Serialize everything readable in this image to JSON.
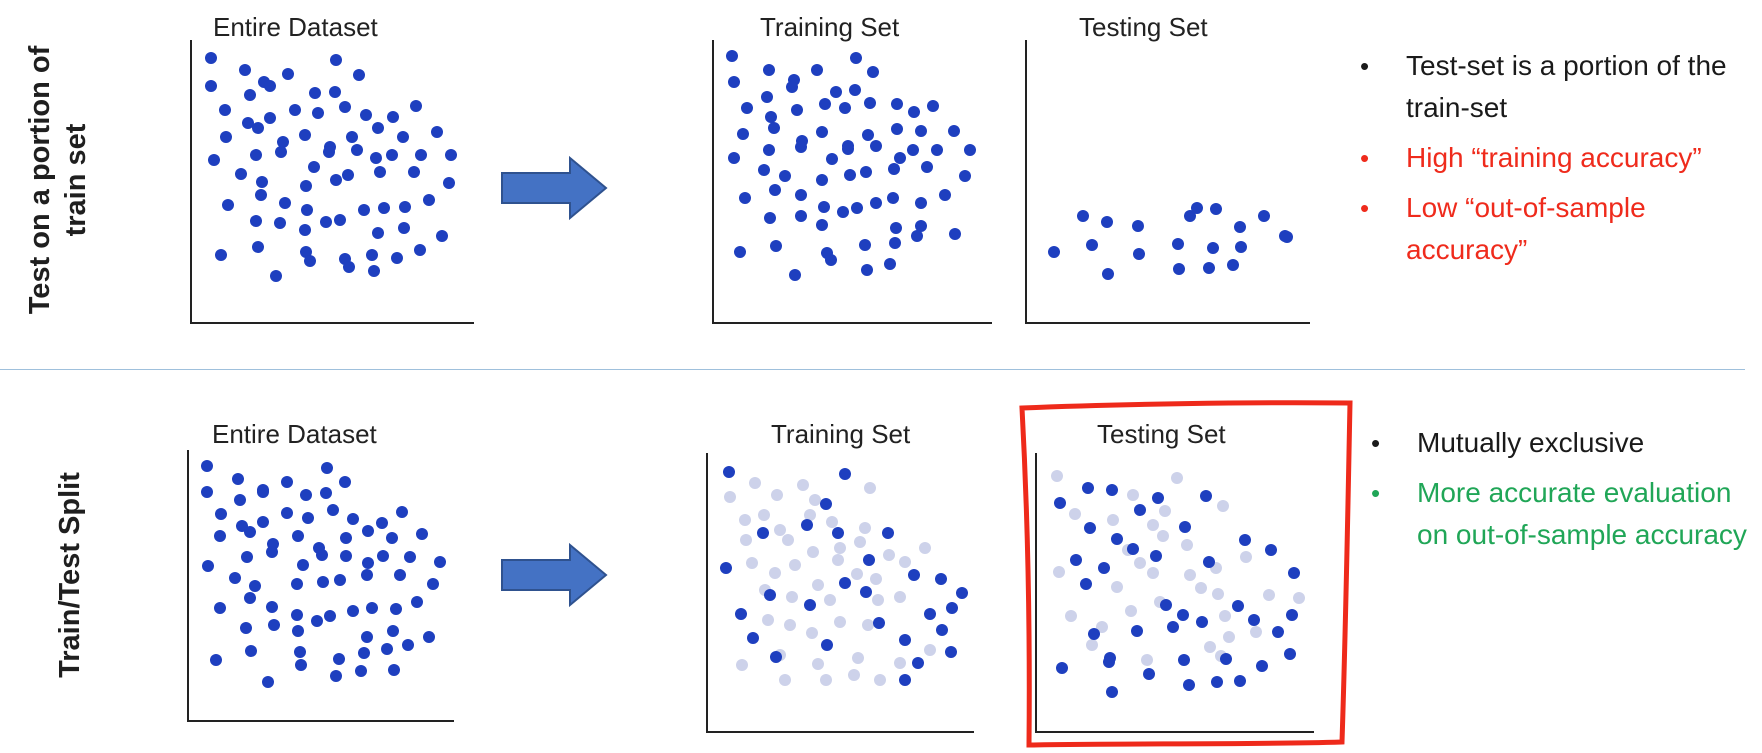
{
  "colors": {
    "point": "#1e3fbf",
    "point_faded": "#cdd2ea",
    "arrow_fill": "#4472c4",
    "arrow_stroke": "#2f528f",
    "highlight_box": "#ee2a1b",
    "divider": "#9fc0dc",
    "text_red": "#ef2b1c",
    "text_green": "#20a657"
  },
  "top_row": {
    "title_lines": [
      "Test on a portion of",
      "train set"
    ],
    "entire_label": "Entire Dataset",
    "training_label": "Training Set",
    "testing_label": "Testing Set",
    "bullets": [
      {
        "text": "Test-set is a portion of the train-set",
        "color": "black"
      },
      {
        "text": "High “training accuracy”",
        "color": "red"
      },
      {
        "text": " Low “out-of-sample accuracy”",
        "color": "red"
      }
    ]
  },
  "bottom_row": {
    "title": "Train/Test Split",
    "entire_label": "Entire Dataset",
    "training_label": "Training Set",
    "testing_label": "Testing Set",
    "bullets": [
      {
        "text": "Mutually exclusive",
        "color": "black"
      },
      {
        "text": "More accurate evaluation on out-of-sample accuracy",
        "color": "green"
      }
    ]
  }
}
